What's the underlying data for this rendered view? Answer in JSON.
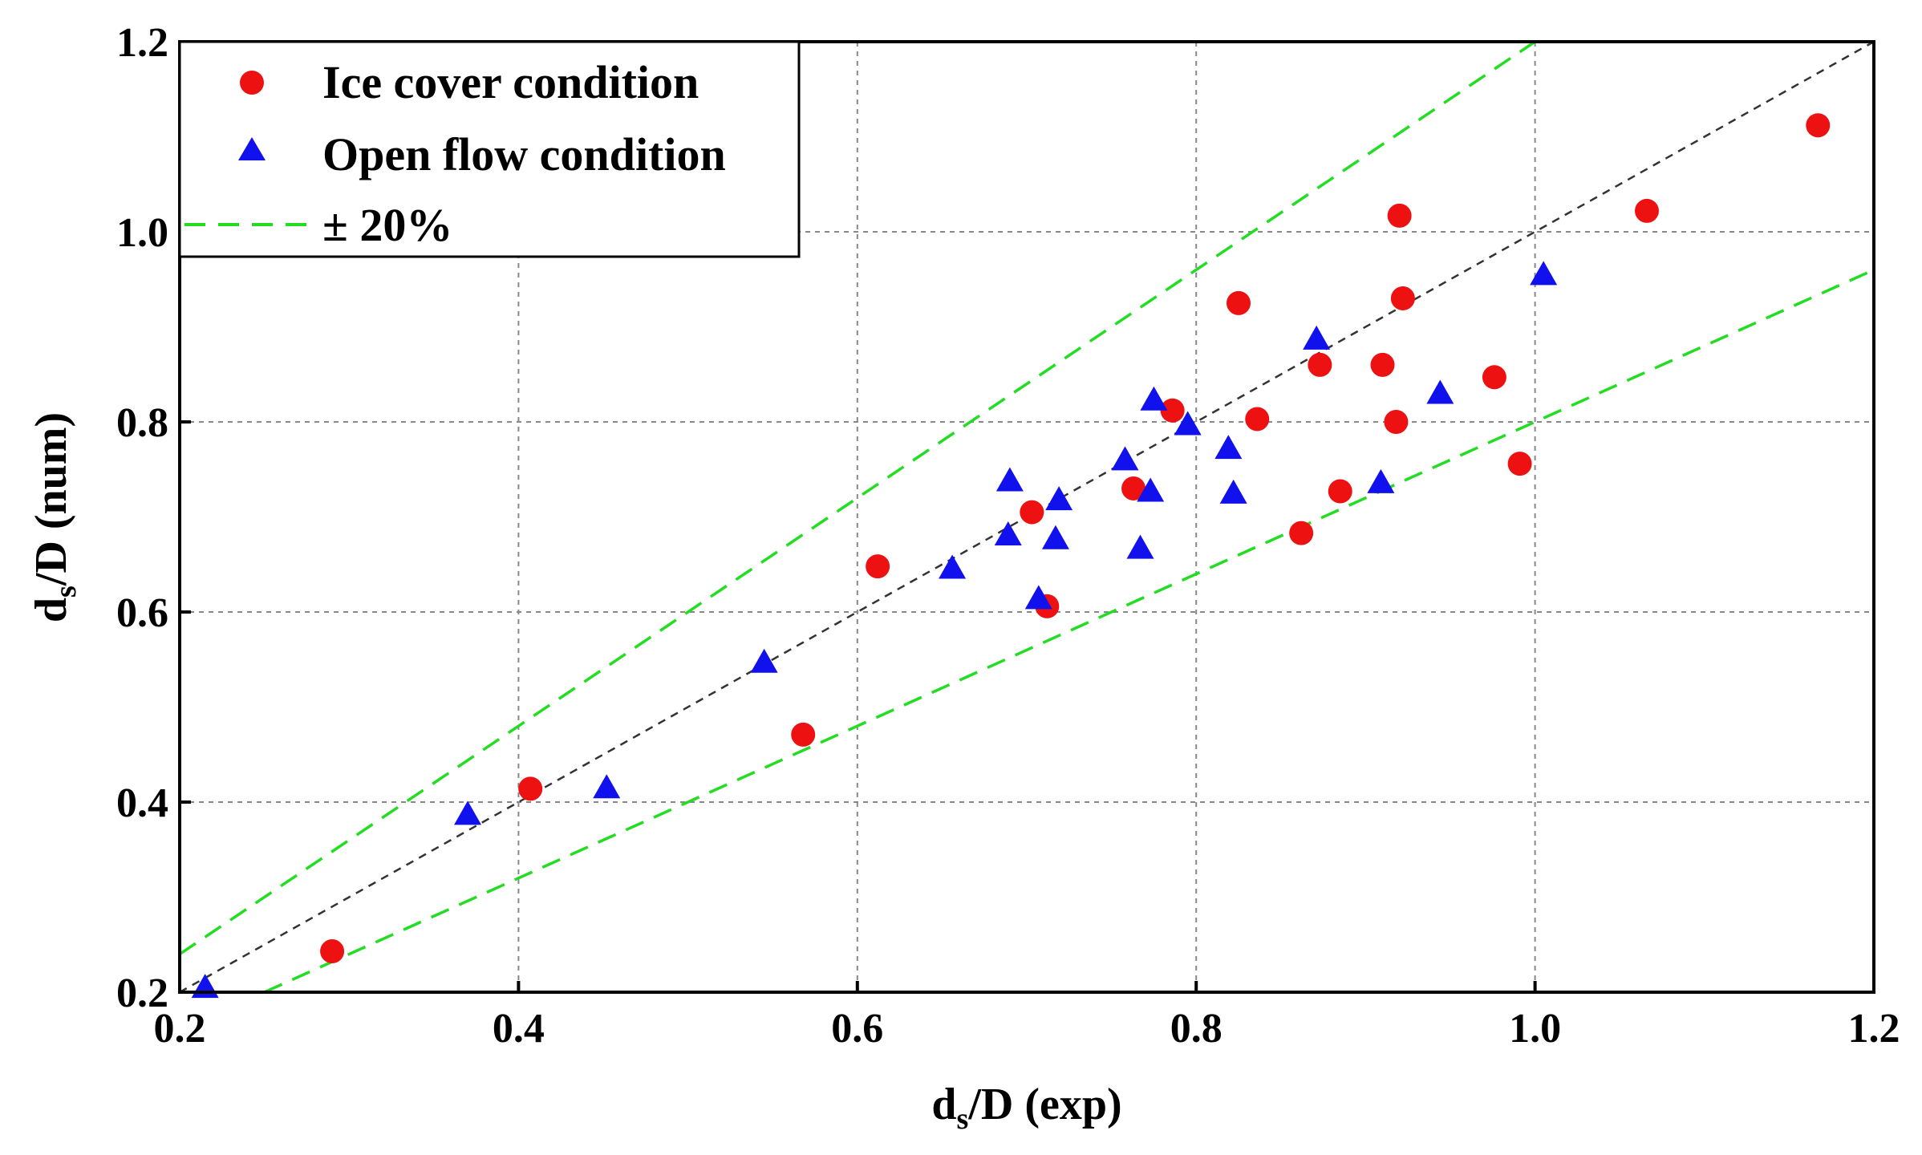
{
  "chart_data": {
    "type": "scatter",
    "title": "",
    "xlabel": {
      "main": "d",
      "sub": "s",
      "rest": "/D (exp)"
    },
    "ylabel": {
      "main": "d",
      "sub": "s",
      "rest": "/D (num)"
    },
    "xlim": [
      0.2,
      1.2
    ],
    "ylim": [
      0.2,
      1.2
    ],
    "x_ticks": [
      0.2,
      0.4,
      0.6,
      0.8,
      1.0,
      1.2
    ],
    "x_tick_labels": [
      "0.2",
      "0.4",
      "0.6",
      "0.8",
      "1.0",
      "1.2"
    ],
    "y_ticks": [
      0.2,
      0.4,
      0.6,
      0.8,
      1.0,
      1.2
    ],
    "y_tick_labels": [
      "0.2",
      "0.4",
      "0.6",
      "0.8",
      "1.0",
      "1.2"
    ],
    "grid": true,
    "legend_position": "top-left",
    "reference_lines": {
      "parity": {
        "slope": 1.0,
        "color": "#333333",
        "style": "dashed"
      },
      "bounds": {
        "label": "± 20%",
        "slopes": [
          1.2,
          0.8
        ],
        "color": "#22dd22",
        "style": "dashed"
      }
    },
    "series": [
      {
        "name": "Ice cover condition",
        "marker": "circle",
        "color": "#ee1111",
        "points": [
          [
            0.29,
            0.243
          ],
          [
            0.407,
            0.414
          ],
          [
            0.568,
            0.471
          ],
          [
            0.612,
            0.648
          ],
          [
            0.703,
            0.705
          ],
          [
            0.712,
            0.606
          ],
          [
            0.763,
            0.73
          ],
          [
            0.786,
            0.812
          ],
          [
            0.825,
            0.925
          ],
          [
            0.836,
            0.803
          ],
          [
            0.862,
            0.683
          ],
          [
            0.873,
            0.86
          ],
          [
            0.885,
            0.727
          ],
          [
            0.91,
            0.86
          ],
          [
            0.918,
            0.8
          ],
          [
            0.92,
            1.017
          ],
          [
            0.922,
            0.93
          ],
          [
            0.976,
            0.847
          ],
          [
            0.991,
            0.756
          ],
          [
            1.066,
            1.022
          ],
          [
            1.167,
            1.112
          ]
        ]
      },
      {
        "name": "Open flow condition",
        "marker": "triangle",
        "color": "#1111ee",
        "points": [
          [
            0.215,
            0.205
          ],
          [
            0.37,
            0.387
          ],
          [
            0.452,
            0.415
          ],
          [
            0.545,
            0.547
          ],
          [
            0.656,
            0.646
          ],
          [
            0.689,
            0.681
          ],
          [
            0.69,
            0.738
          ],
          [
            0.707,
            0.614
          ],
          [
            0.717,
            0.677
          ],
          [
            0.719,
            0.718
          ],
          [
            0.758,
            0.76
          ],
          [
            0.767,
            0.667
          ],
          [
            0.773,
            0.727
          ],
          [
            0.775,
            0.823
          ],
          [
            0.795,
            0.797
          ],
          [
            0.819,
            0.772
          ],
          [
            0.822,
            0.725
          ],
          [
            0.871,
            0.887
          ],
          [
            0.909,
            0.736
          ],
          [
            0.944,
            0.83
          ],
          [
            1.005,
            0.955
          ]
        ]
      }
    ]
  }
}
